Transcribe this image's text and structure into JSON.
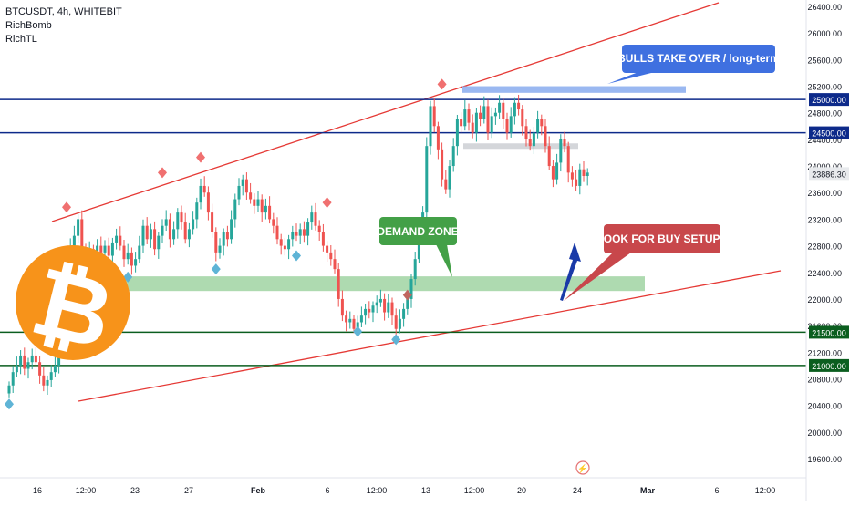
{
  "legend": {
    "symbol": "BTCUSDT, 4h, WHITEBIT",
    "indicator_1": "RichBomb",
    "indicator_2": "RichTL"
  },
  "annotations": {
    "bulls": "BULLS TAKE OVER / long-term",
    "demand": "DEMAND ZONE",
    "buy": "LOOK FOR BUY SETUPS"
  },
  "colors": {
    "up": "#26a69a",
    "down": "#ef5350",
    "resistance_line": "#0d2a8a",
    "support_line": "#0b5e1f",
    "channel": "#e53935",
    "demand_zone": "#a5d6a7",
    "bull_box": "#8fb0f0",
    "grey_box": "#cfd1d6",
    "bitcoin": "#f7931a",
    "label_blue": "#3f70e0",
    "label_green": "#43a047",
    "label_red": "#c8474b",
    "arrow": "#1a3aa8"
  },
  "chart_data": {
    "type": "candlestick",
    "symbol": "BTCUSDT",
    "timeframe": "4h",
    "exchange": "WHITEBIT",
    "ylim": [
      19400,
      26450
    ],
    "y_ticks": [
      19600,
      20000,
      20400,
      20800,
      21200,
      21600,
      22000,
      22400,
      22800,
      23200,
      23600,
      24000,
      24400,
      24800,
      25200,
      25600,
      26000,
      26400
    ],
    "x_ticks": [
      "16",
      "12:00",
      "23",
      "27",
      "Feb",
      "6",
      "12:00",
      "13",
      "12:00",
      "20",
      "24",
      "Mar",
      "6",
      "12:00"
    ],
    "last_price": 23886.3,
    "price_labels": [
      25000.0,
      24500.0,
      23886.3,
      21500.0,
      21000.0
    ],
    "horizontal_lines": [
      {
        "price": 25000,
        "role": "resistance"
      },
      {
        "price": 24500,
        "role": "resistance"
      },
      {
        "price": 21500,
        "role": "support"
      },
      {
        "price": 21000,
        "role": "support"
      }
    ],
    "zones": [
      {
        "name": "DEMAND ZONE",
        "from": 22120,
        "to": 22340
      },
      {
        "name": "BULLS TAKE OVER",
        "from": 25100,
        "to": 25200
      },
      {
        "name": "grey",
        "from": 24280,
        "to": 24340
      }
    ],
    "close_series": [
      20700,
      20900,
      21000,
      21150,
      20950,
      21050,
      21150,
      21050,
      20850,
      20700,
      20780,
      20900,
      21000,
      21200,
      21600,
      22200,
      22800,
      22950,
      23200,
      22750,
      22600,
      22750,
      22650,
      22800,
      22700,
      22800,
      22650,
      22850,
      22950,
      22800,
      22600,
      22700,
      22500,
      22600,
      22800,
      23100,
      22900,
      23050,
      22750,
      22950,
      23100,
      23200,
      22900,
      23050,
      23300,
      23150,
      22900,
      23050,
      23200,
      23450,
      23700,
      23600,
      23300,
      23000,
      22700,
      22800,
      23000,
      22900,
      23200,
      23500,
      23700,
      23800,
      23600,
      23500,
      23400,
      23500,
      23300,
      23400,
      23200,
      23100,
      22900,
      22800,
      22750,
      22900,
      23000,
      22950,
      23050,
      22950,
      23150,
      23300,
      23100,
      23000,
      22800,
      22700,
      22600,
      22450,
      22000,
      21750,
      21650,
      21700,
      21550,
      21650,
      21750,
      21850,
      21800,
      21900,
      21950,
      22000,
      21800,
      21950,
      21750,
      21550,
      21700,
      21850,
      22000,
      22300,
      22600,
      22950,
      23300,
      24300,
      24900,
      24600,
      24250,
      23800,
      23650,
      24000,
      24300,
      24700,
      24600,
      24850,
      24650,
      24500,
      24800,
      24700,
      24900,
      24500,
      24750,
      24800,
      24950,
      24700,
      24500,
      24750,
      24950,
      24850,
      24600,
      24400,
      24300,
      24500,
      24700,
      24600,
      24300,
      24000,
      23800,
      24050,
      24400,
      24300,
      23900,
      23800,
      23700,
      23950,
      23850,
      23900
    ],
    "markers": [
      {
        "type": "top",
        "index": 15,
        "price": 23380
      },
      {
        "type": "top",
        "index": 40,
        "price": 23900
      },
      {
        "type": "top",
        "index": 50,
        "price": 24130
      },
      {
        "type": "top",
        "index": 83,
        "price": 23450
      },
      {
        "type": "top",
        "index": 113,
        "price": 25230
      },
      {
        "type": "top",
        "index": 104,
        "price": 22060
      },
      {
        "type": "bottom",
        "index": 0,
        "price": 20420
      },
      {
        "type": "bottom",
        "index": 31,
        "price": 22330
      },
      {
        "type": "bottom",
        "index": 54,
        "price": 22450
      },
      {
        "type": "bottom",
        "index": 75,
        "price": 22650
      },
      {
        "type": "bottom",
        "index": 91,
        "price": 21510
      },
      {
        "type": "bottom",
        "index": 101,
        "price": 21390
      }
    ]
  }
}
